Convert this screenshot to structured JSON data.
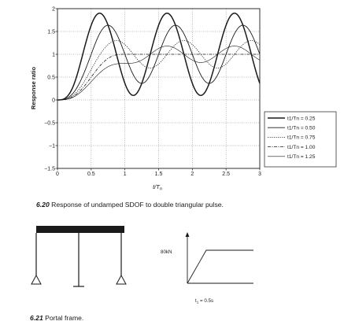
{
  "chart_data": {
    "type": "line",
    "title": "",
    "xlabel": "t/Tn",
    "ylabel": "Response ratio",
    "xlim": [
      0,
      3
    ],
    "ylim": [
      -1.5,
      2
    ],
    "xticks": [
      "0",
      "0.5",
      "1",
      "1.5",
      "2",
      "2.5",
      "3"
    ],
    "yticks": [
      "2",
      "1.5",
      "1",
      "0.5",
      "0",
      "-0.5",
      "-1",
      "-1.5"
    ],
    "grid": true,
    "legend_position": "right",
    "series": [
      {
        "name": "t1/Tn = 0.25",
        "td": 0.25,
        "style": "solid-bold"
      },
      {
        "name": "t1/Tn = 0.50",
        "td": 0.5,
        "style": "solid"
      },
      {
        "name": "t1/Tn = 0.75",
        "td": 0.75,
        "style": "dotted"
      },
      {
        "name": "t1/Tn = 1.00",
        "td": 1.0,
        "style": "dashdot"
      },
      {
        "name": "t1/Tn = 1.25",
        "td": 1.25,
        "style": "solid-thin"
      }
    ]
  },
  "fig620": {
    "number": "6.20",
    "text": "Response of undamped SDOF to double triangular pulse."
  },
  "fig621": {
    "number": "6.21",
    "text": "Portal frame.",
    "load_label": "80kN",
    "time_label": "t1 = 0.5s"
  }
}
